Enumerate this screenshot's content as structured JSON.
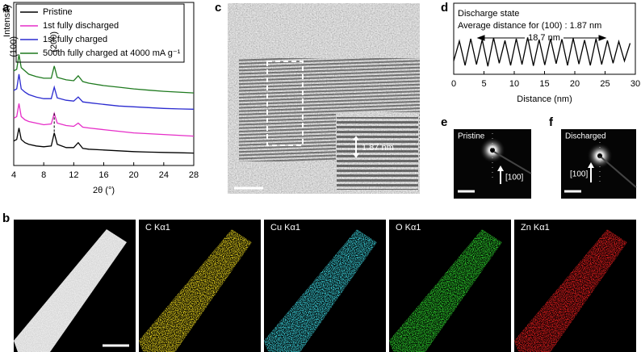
{
  "panel_labels": [
    "a",
    "b",
    "c",
    "d",
    "e",
    "f"
  ],
  "chart_data": [
    {
      "type": "line",
      "xlabel": "2θ (°)",
      "ylabel": "Intensity",
      "x": [
        4,
        4.4,
        4.7,
        5,
        5.5,
        6,
        7,
        8,
        9,
        9.4,
        9.8,
        11,
        12,
        12.6,
        13.2,
        14,
        16,
        18,
        20,
        22,
        24,
        26,
        28
      ],
      "xlim": [
        4,
        28
      ],
      "xticks": [
        4,
        8,
        12,
        16,
        20,
        24,
        28
      ],
      "ylim": [
        0,
        10
      ],
      "annotations": [
        "(100)",
        "(200)"
      ],
      "series": [
        {
          "name": "Pristine",
          "color": "#000000",
          "values": [
            1.5,
            1.6,
            2.3,
            1.6,
            1.4,
            1.3,
            1.2,
            1.15,
            1.2,
            2.0,
            1.3,
            1.1,
            1.1,
            1.4,
            1.05,
            1.0,
            0.95,
            0.9,
            0.85,
            0.82,
            0.8,
            0.78,
            0.76
          ]
        },
        {
          "name": "1st fully discharged",
          "color": "#e62ec8",
          "values": [
            2.9,
            3.0,
            3.8,
            3.0,
            2.8,
            2.7,
            2.6,
            2.5,
            2.55,
            3.2,
            2.6,
            2.45,
            2.4,
            2.6,
            2.35,
            2.3,
            2.2,
            2.1,
            2.0,
            1.95,
            1.9,
            1.85,
            1.8
          ]
        },
        {
          "name": "1st fully charged",
          "color": "#2b2bd0",
          "values": [
            4.6,
            4.7,
            5.6,
            4.7,
            4.5,
            4.35,
            4.2,
            4.1,
            4.1,
            4.8,
            4.15,
            4.0,
            3.95,
            4.2,
            3.9,
            3.85,
            3.75,
            3.65,
            3.6,
            3.55,
            3.5,
            3.47,
            3.45
          ]
        },
        {
          "name": "500th fully charged at 4000 mA g⁻¹",
          "color": "#1f7a1f",
          "values": [
            5.8,
            5.9,
            6.8,
            6.0,
            5.8,
            5.6,
            5.45,
            5.35,
            5.35,
            6.1,
            5.4,
            5.25,
            5.2,
            5.5,
            5.15,
            5.05,
            4.9,
            4.8,
            4.7,
            4.62,
            4.55,
            4.5,
            4.45
          ]
        }
      ]
    },
    {
      "type": "line",
      "xlabel": "Distance (nm)",
      "x": [
        0,
        0.94,
        1.88,
        2.82,
        3.76,
        4.7,
        5.64,
        6.58,
        7.52,
        8.46,
        9.4,
        10.34,
        11.28,
        12.22,
        13.16,
        14.1,
        15.04,
        15.98,
        16.92,
        17.86,
        18.8,
        19.74,
        20.68,
        21.62,
        22.56,
        23.5,
        24.44,
        25.38,
        26.32,
        27.26,
        28.2,
        29.14
      ],
      "xlim": [
        0,
        30
      ],
      "xticks": [
        0,
        5,
        10,
        15,
        20,
        25,
        30
      ],
      "ylim": [
        0,
        1.6
      ],
      "annotations": [
        "Discharge state",
        "Average distance for (100) : 1.87 nm",
        "18.7 nm"
      ],
      "series": [
        {
          "color": "#000000",
          "values": [
            0.3,
            0.75,
            0.2,
            0.8,
            0.22,
            0.78,
            0.18,
            0.82,
            0.25,
            0.76,
            0.2,
            0.8,
            0.22,
            0.83,
            0.19,
            0.78,
            0.21,
            0.8,
            0.24,
            0.79,
            0.2,
            0.81,
            0.23,
            0.77,
            0.2,
            0.8,
            0.22,
            0.76,
            0.25,
            0.74,
            0.3,
            0.7
          ]
        }
      ]
    }
  ],
  "images": {
    "c": {
      "inset_label": "1.87 nm"
    },
    "e": {
      "title": "Pristine",
      "direction": "[100]"
    },
    "f": {
      "title": "Discharged",
      "direction": "[100]"
    },
    "b": {
      "maps": [
        {
          "label": "C Kα1",
          "color": "#e6d21e"
        },
        {
          "label": "Cu Kα1",
          "color": "#3cd2dc"
        },
        {
          "label": "O Kα1",
          "color": "#2ed22e"
        },
        {
          "label": "Zn Kα1",
          "color": "#e61e1e"
        }
      ]
    }
  }
}
